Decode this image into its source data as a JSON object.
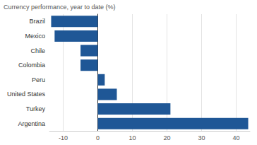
{
  "chart_data": {
    "type": "bar",
    "title": "Currency performance, year to date (%)",
    "orientation": "horizontal",
    "categories": [
      "Brazil",
      "Mexico",
      "Chile",
      "Colombia",
      "Peru",
      "United States",
      "Turkey",
      "Argentina"
    ],
    "values": [
      -13.5,
      -12.5,
      -5,
      -5,
      2,
      5.5,
      21,
      43.5
    ],
    "color": "#1f5796",
    "xlim": [
      -14,
      44
    ],
    "xticks": [
      -10,
      0,
      10,
      20,
      30,
      40
    ],
    "grid": true
  }
}
